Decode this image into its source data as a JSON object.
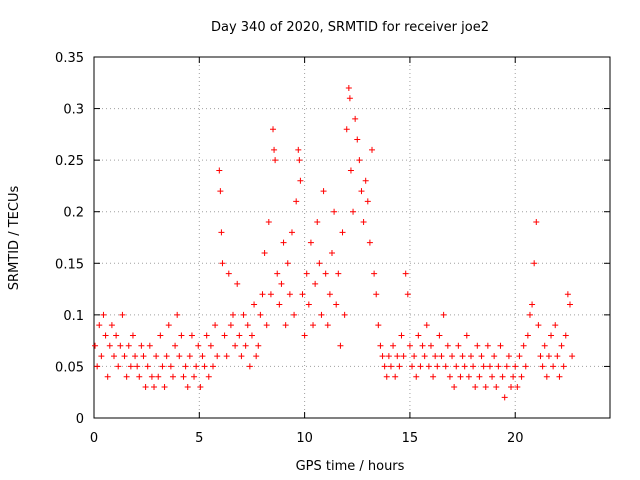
{
  "chart_data": {
    "type": "scatter",
    "title": "Day 340 of 2020, SRMTID for receiver joe2",
    "xlabel": "GPS time / hours",
    "ylabel": "SRMTID / TECUs",
    "xlim": [
      0,
      24.5
    ],
    "ylim": [
      0,
      0.35
    ],
    "x_ticks": [
      0,
      5,
      10,
      15,
      20
    ],
    "x_tick_labels": [
      "0",
      "5",
      "10",
      "15",
      "20"
    ],
    "y_ticks": [
      0,
      0.05,
      0.1,
      0.15,
      0.2,
      0.25,
      0.3,
      0.35
    ],
    "y_tick_labels": [
      "0",
      "0.05",
      "0.1",
      "0.15",
      "0.2",
      "0.25",
      "0.3",
      "0.35"
    ],
    "grid": true,
    "marker": "plus",
    "series": [
      {
        "name": "SRMTID",
        "color": "#ff0000",
        "points": [
          [
            0.05,
            0.07
          ],
          [
            0.15,
            0.05
          ],
          [
            0.25,
            0.09
          ],
          [
            0.35,
            0.06
          ],
          [
            0.45,
            0.1
          ],
          [
            0.55,
            0.08
          ],
          [
            0.65,
            0.04
          ],
          [
            0.75,
            0.07
          ],
          [
            0.85,
            0.09
          ],
          [
            0.95,
            0.06
          ],
          [
            1.05,
            0.08
          ],
          [
            1.15,
            0.05
          ],
          [
            1.25,
            0.07
          ],
          [
            1.35,
            0.1
          ],
          [
            1.45,
            0.06
          ],
          [
            1.55,
            0.04
          ],
          [
            1.65,
            0.07
          ],
          [
            1.75,
            0.05
          ],
          [
            1.85,
            0.08
          ],
          [
            1.95,
            0.06
          ],
          [
            2.05,
            0.05
          ],
          [
            2.15,
            0.04
          ],
          [
            2.25,
            0.07
          ],
          [
            2.35,
            0.06
          ],
          [
            2.45,
            0.03
          ],
          [
            2.55,
            0.05
          ],
          [
            2.65,
            0.07
          ],
          [
            2.75,
            0.04
          ],
          [
            2.85,
            0.03
          ],
          [
            2.95,
            0.06
          ],
          [
            3.05,
            0.04
          ],
          [
            3.15,
            0.08
          ],
          [
            3.25,
            0.05
          ],
          [
            3.35,
            0.03
          ],
          [
            3.45,
            0.06
          ],
          [
            3.55,
            0.09
          ],
          [
            3.65,
            0.05
          ],
          [
            3.75,
            0.04
          ],
          [
            3.85,
            0.07
          ],
          [
            3.95,
            0.1
          ],
          [
            4.05,
            0.06
          ],
          [
            4.15,
            0.08
          ],
          [
            4.25,
            0.04
          ],
          [
            4.35,
            0.05
          ],
          [
            4.45,
            0.03
          ],
          [
            4.55,
            0.06
          ],
          [
            4.65,
            0.08
          ],
          [
            4.75,
            0.04
          ],
          [
            4.85,
            0.05
          ],
          [
            4.95,
            0.07
          ],
          [
            5.05,
            0.03
          ],
          [
            5.15,
            0.06
          ],
          [
            5.25,
            0.05
          ],
          [
            5.35,
            0.08
          ],
          [
            5.45,
            0.04
          ],
          [
            5.55,
            0.07
          ],
          [
            5.65,
            0.05
          ],
          [
            5.75,
            0.09
          ],
          [
            5.85,
            0.06
          ],
          [
            5.95,
            0.24
          ],
          [
            6.0,
            0.22
          ],
          [
            6.05,
            0.18
          ],
          [
            6.1,
            0.15
          ],
          [
            6.2,
            0.08
          ],
          [
            6.3,
            0.06
          ],
          [
            6.4,
            0.14
          ],
          [
            6.5,
            0.09
          ],
          [
            6.6,
            0.1
          ],
          [
            6.7,
            0.07
          ],
          [
            6.8,
            0.13
          ],
          [
            6.9,
            0.08
          ],
          [
            7.0,
            0.06
          ],
          [
            7.1,
            0.1
          ],
          [
            7.2,
            0.07
          ],
          [
            7.3,
            0.09
          ],
          [
            7.4,
            0.05
          ],
          [
            7.5,
            0.08
          ],
          [
            7.6,
            0.11
          ],
          [
            7.7,
            0.06
          ],
          [
            7.8,
            0.07
          ],
          [
            7.9,
            0.1
          ],
          [
            8.0,
            0.12
          ],
          [
            8.1,
            0.16
          ],
          [
            8.2,
            0.09
          ],
          [
            8.3,
            0.19
          ],
          [
            8.4,
            0.12
          ],
          [
            8.5,
            0.28
          ],
          [
            8.55,
            0.26
          ],
          [
            8.6,
            0.25
          ],
          [
            8.7,
            0.14
          ],
          [
            8.8,
            0.11
          ],
          [
            8.9,
            0.13
          ],
          [
            9.0,
            0.17
          ],
          [
            9.1,
            0.09
          ],
          [
            9.2,
            0.15
          ],
          [
            9.3,
            0.12
          ],
          [
            9.4,
            0.18
          ],
          [
            9.5,
            0.1
          ],
          [
            9.6,
            0.21
          ],
          [
            9.7,
            0.26
          ],
          [
            9.75,
            0.25
          ],
          [
            9.8,
            0.23
          ],
          [
            9.9,
            0.12
          ],
          [
            10.0,
            0.08
          ],
          [
            10.1,
            0.14
          ],
          [
            10.2,
            0.11
          ],
          [
            10.3,
            0.17
          ],
          [
            10.4,
            0.09
          ],
          [
            10.5,
            0.13
          ],
          [
            10.6,
            0.19
          ],
          [
            10.7,
            0.15
          ],
          [
            10.8,
            0.1
          ],
          [
            10.9,
            0.22
          ],
          [
            11.0,
            0.14
          ],
          [
            11.1,
            0.09
          ],
          [
            11.2,
            0.12
          ],
          [
            11.3,
            0.16
          ],
          [
            11.4,
            0.2
          ],
          [
            11.5,
            0.11
          ],
          [
            11.6,
            0.14
          ],
          [
            11.7,
            0.07
          ],
          [
            11.8,
            0.18
          ],
          [
            11.9,
            0.1
          ],
          [
            12.0,
            0.28
          ],
          [
            12.1,
            0.32
          ],
          [
            12.15,
            0.31
          ],
          [
            12.2,
            0.24
          ],
          [
            12.3,
            0.2
          ],
          [
            12.4,
            0.29
          ],
          [
            12.5,
            0.27
          ],
          [
            12.6,
            0.25
          ],
          [
            12.7,
            0.22
          ],
          [
            12.8,
            0.19
          ],
          [
            12.9,
            0.23
          ],
          [
            13.0,
            0.21
          ],
          [
            13.1,
            0.17
          ],
          [
            13.2,
            0.26
          ],
          [
            13.3,
            0.14
          ],
          [
            13.4,
            0.12
          ],
          [
            13.5,
            0.09
          ],
          [
            13.6,
            0.07
          ],
          [
            13.7,
            0.06
          ],
          [
            13.8,
            0.05
          ],
          [
            13.9,
            0.04
          ],
          [
            14.0,
            0.06
          ],
          [
            14.1,
            0.05
          ],
          [
            14.2,
            0.07
          ],
          [
            14.3,
            0.04
          ],
          [
            14.4,
            0.06
          ],
          [
            14.5,
            0.05
          ],
          [
            14.6,
            0.08
          ],
          [
            14.7,
            0.06
          ],
          [
            14.8,
            0.14
          ],
          [
            14.9,
            0.12
          ],
          [
            15.0,
            0.07
          ],
          [
            15.1,
            0.05
          ],
          [
            15.2,
            0.06
          ],
          [
            15.3,
            0.04
          ],
          [
            15.4,
            0.08
          ],
          [
            15.5,
            0.05
          ],
          [
            15.6,
            0.07
          ],
          [
            15.7,
            0.06
          ],
          [
            15.8,
            0.09
          ],
          [
            15.9,
            0.05
          ],
          [
            16.0,
            0.07
          ],
          [
            16.1,
            0.04
          ],
          [
            16.2,
            0.06
          ],
          [
            16.3,
            0.05
          ],
          [
            16.4,
            0.08
          ],
          [
            16.5,
            0.06
          ],
          [
            16.6,
            0.1
          ],
          [
            16.7,
            0.05
          ],
          [
            16.8,
            0.07
          ],
          [
            16.9,
            0.04
          ],
          [
            17.0,
            0.06
          ],
          [
            17.1,
            0.03
          ],
          [
            17.2,
            0.05
          ],
          [
            17.3,
            0.07
          ],
          [
            17.4,
            0.04
          ],
          [
            17.5,
            0.06
          ],
          [
            17.6,
            0.05
          ],
          [
            17.7,
            0.08
          ],
          [
            17.8,
            0.04
          ],
          [
            17.9,
            0.06
          ],
          [
            18.0,
            0.05
          ],
          [
            18.1,
            0.03
          ],
          [
            18.2,
            0.07
          ],
          [
            18.3,
            0.04
          ],
          [
            18.4,
            0.06
          ],
          [
            18.5,
            0.05
          ],
          [
            18.6,
            0.03
          ],
          [
            18.7,
            0.07
          ],
          [
            18.8,
            0.05
          ],
          [
            18.9,
            0.04
          ],
          [
            19.0,
            0.06
          ],
          [
            19.1,
            0.03
          ],
          [
            19.2,
            0.05
          ],
          [
            19.3,
            0.07
          ],
          [
            19.4,
            0.04
          ],
          [
            19.5,
            0.02
          ],
          [
            19.6,
            0.05
          ],
          [
            19.7,
            0.06
          ],
          [
            19.8,
            0.03
          ],
          [
            19.9,
            0.04
          ],
          [
            20.0,
            0.05
          ],
          [
            20.1,
            0.03
          ],
          [
            20.2,
            0.06
          ],
          [
            20.3,
            0.04
          ],
          [
            20.4,
            0.07
          ],
          [
            20.5,
            0.05
          ],
          [
            20.6,
            0.08
          ],
          [
            20.7,
            0.1
          ],
          [
            20.8,
            0.11
          ],
          [
            20.9,
            0.15
          ],
          [
            21.0,
            0.19
          ],
          [
            21.1,
            0.09
          ],
          [
            21.2,
            0.06
          ],
          [
            21.3,
            0.05
          ],
          [
            21.4,
            0.07
          ],
          [
            21.5,
            0.04
          ],
          [
            21.6,
            0.06
          ],
          [
            21.7,
            0.08
          ],
          [
            21.8,
            0.05
          ],
          [
            21.9,
            0.09
          ],
          [
            22.0,
            0.06
          ],
          [
            22.1,
            0.04
          ],
          [
            22.2,
            0.07
          ],
          [
            22.3,
            0.05
          ],
          [
            22.4,
            0.08
          ],
          [
            22.5,
            0.12
          ],
          [
            22.6,
            0.11
          ],
          [
            22.7,
            0.06
          ]
        ]
      }
    ]
  }
}
